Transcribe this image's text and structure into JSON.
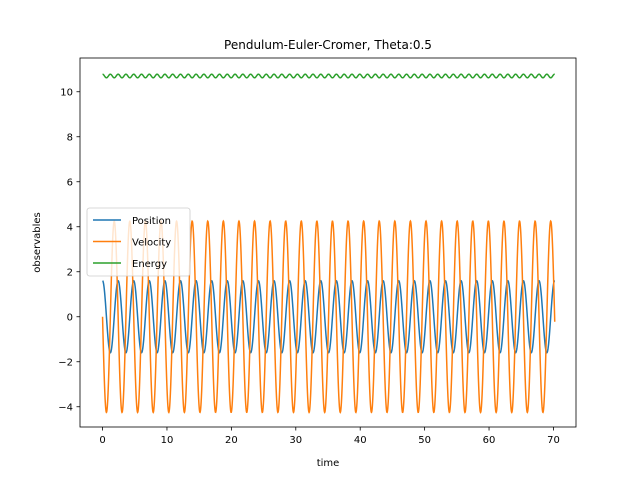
{
  "chart_data": {
    "type": "line",
    "title": "Pendulum-Euler-Cromer, Theta:0.5",
    "xlabel": "time",
    "ylabel": "observables",
    "xlim": [
      -3.5,
      73.5
    ],
    "ylim": [
      -4.9,
      11.5
    ],
    "xticks": [
      0,
      10,
      20,
      30,
      40,
      50,
      60,
      70
    ],
    "yticks": [
      -4,
      -2,
      0,
      2,
      4,
      6,
      8,
      10
    ],
    "x": {
      "start": 0,
      "end": 70.2,
      "samples": 2000
    },
    "legend": {
      "placement": "center-left",
      "entries": [
        "Position",
        "Velocity",
        "Energy"
      ]
    },
    "grid": false,
    "series": [
      {
        "name": "Position",
        "color": "#1f77b4",
        "amplitude": 1.6,
        "period": 2.42,
        "phase_shift": 0,
        "offset": 0,
        "form": "cos"
      },
      {
        "name": "Velocity",
        "color": "#ff7f0e",
        "amplitude": 4.25,
        "period": 2.42,
        "phase_shift": 0,
        "offset": 0,
        "form": "-sin"
      },
      {
        "name": "Energy",
        "color": "#2ca02c",
        "amplitude": 0.08,
        "period": 1.21,
        "phase_shift": 0,
        "offset": 10.7,
        "form": "cos"
      }
    ]
  }
}
